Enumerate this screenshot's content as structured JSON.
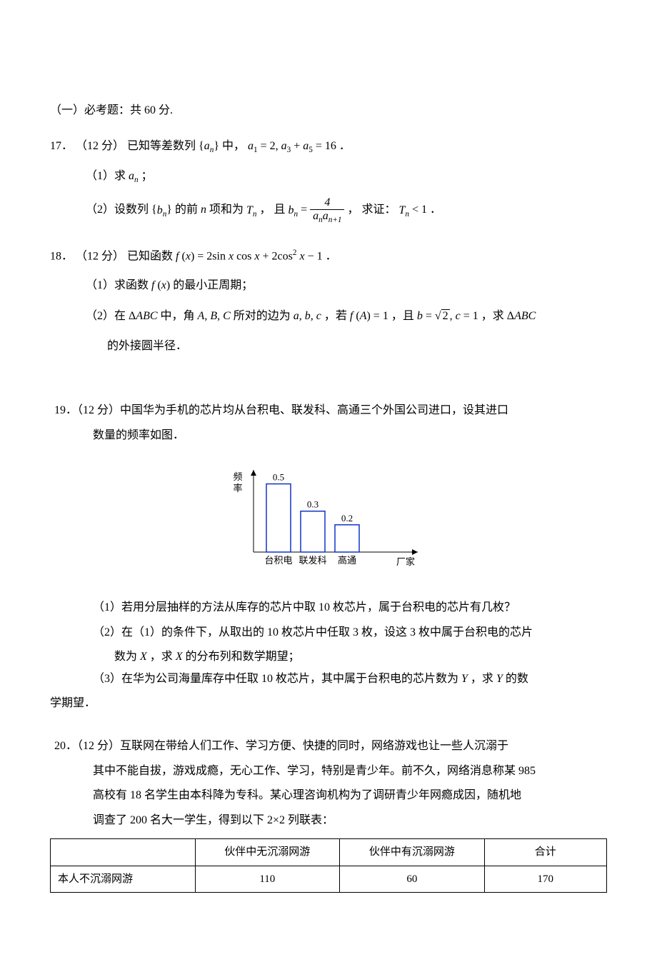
{
  "section": {
    "title": "（一）必考题：共 60 分."
  },
  "q17": {
    "num": "17．",
    "points": "（12 分）",
    "stem_a": "已知等差数列",
    "stem_b": "中，",
    "stem_cond": "a₁ = 2, a₃ + a₅ = 16",
    "stem_end": "．",
    "p1": "（1）求 aₙ；",
    "p2a": "（2）设数列",
    "p2b": "的前 n 项和为 Tₙ ， 且",
    "frac_num": "4",
    "frac_den": "aₙaₙ₊₁",
    "p2c": "， 求证： Tₙ < 1 ．"
  },
  "q18": {
    "num": "18．",
    "points": "（12 分）",
    "stem": "已知函数 f (x) = 2sin x cos x + 2cos² x − 1 ．",
    "p1": "（1）求函数 f (x) 的最小正周期；",
    "p2a": "（2）在 ΔABC 中，角 A, B, C 所对的边为 a, b, c ，若 f (A) = 1 ，且 b = ",
    "sqrt": "2",
    "p2b": ", c = 1 ，求 ΔABC",
    "p2c": "的外接圆半径．"
  },
  "q19": {
    "num": "19．",
    "points": "（12 分）",
    "stem1": "中国华为手机的芯片均从台积电、联发科、高通三个外国公司进口，设其进口",
    "stem2": "数量的频率如图．",
    "chart": {
      "type": "bar",
      "categories": [
        "台积电",
        "联发科",
        "高通"
      ],
      "values": [
        0.5,
        0.3,
        0.2
      ],
      "ylabel": "频\n率",
      "xlabel": "厂家",
      "bar_outline": "#1034c8",
      "bar_fill": "#ffffff",
      "axis_color": "#000000",
      "text_color": "#000000",
      "label_fontsize": 13,
      "value_fontsize": 13,
      "ylim": [
        0,
        0.55
      ]
    },
    "p1": "（1）若用分层抽样的方法从库存的芯片中取 10 枚芯片，属于台积电的芯片有几枚？",
    "p2a": "（2）在（1）的条件下，从取出的 10 枚芯片中任取 3 枚，设这 3 枚中属于台积电的芯片",
    "p2b": "数为 X ，求 X 的分布列和数学期望；",
    "p3a": "（3）在华为公司海量库存中任取 10 枚芯片，其中属于台积电的芯片数为 Y ，求 Y 的数",
    "p3b": "学期望．"
  },
  "q20": {
    "num": "20．",
    "points": "（12 分）",
    "stem1": "互联网在带给人们工作、学习方便、快捷的同时，网络游戏也让一些人沉溺于",
    "stem2": "其中不能自拔，游戏成瘾，无心工作、学习，特别是青少年。前不久，网络消息称某 985",
    "stem3": "高校有 18 名学生由本科降为专科。某心理咨询机构为了调研青少年网瘾成因，随机地",
    "stem4": "调查了 200 名大一学生，得到以下 2×2 列联表：",
    "table": {
      "cols": [
        "",
        "伙伴中无沉溺网游",
        "伙伴中有沉溺网游",
        "合计"
      ],
      "rows": [
        [
          "本人不沉溺网游",
          "110",
          "60",
          "170"
        ]
      ],
      "col_widths": [
        "26%",
        "26%",
        "26%",
        "22%"
      ]
    }
  }
}
